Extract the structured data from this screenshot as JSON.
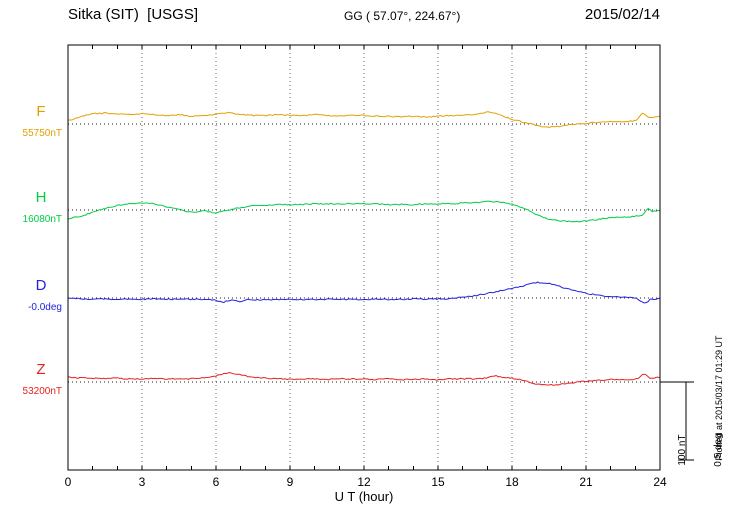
{
  "header": {
    "station": "Sitka (SIT)  [USGS]",
    "coords": "GG ( 57.07°, 224.67°)",
    "date": "2015/02/14"
  },
  "footer_note": "Plotted at 2015/03/17 01:29 UT",
  "chart_data": {
    "type": "line",
    "xlabel": "U T (hour)",
    "x_range": [
      0,
      24
    ],
    "x_ticks": [
      "0",
      "3",
      "6",
      "9",
      "12",
      "15",
      "18",
      "21",
      "24"
    ],
    "grid": "dotted vertical lines every 3 hours; dotted horizontal baseline per trace",
    "scale_bar": {
      "labels": [
        "100 nT",
        "0.5 deg"
      ],
      "nT": 100,
      "deg": 0.5
    },
    "series": [
      {
        "name": "F",
        "baseline_label": "55750nT",
        "unit": "nT",
        "color": "#e2a000",
        "points": [
          [
            0,
            4
          ],
          [
            0.5,
            9
          ],
          [
            1,
            13
          ],
          [
            1.5,
            14
          ],
          [
            2,
            13
          ],
          [
            2.5,
            12
          ],
          [
            3,
            13
          ],
          [
            3.5,
            12
          ],
          [
            4,
            11
          ],
          [
            4.5,
            12
          ],
          [
            5,
            10
          ],
          [
            5.5,
            11
          ],
          [
            6,
            12
          ],
          [
            6.5,
            15
          ],
          [
            7,
            12
          ],
          [
            7.5,
            11
          ],
          [
            8,
            11
          ],
          [
            8.5,
            12
          ],
          [
            9,
            11
          ],
          [
            9.5,
            11
          ],
          [
            10,
            12
          ],
          [
            10.5,
            11
          ],
          [
            11,
            10
          ],
          [
            11.5,
            11
          ],
          [
            12,
            11
          ],
          [
            12.5,
            10
          ],
          [
            13,
            10
          ],
          [
            13.5,
            9
          ],
          [
            14,
            10
          ],
          [
            14.5,
            9
          ],
          [
            15,
            10
          ],
          [
            15.5,
            11
          ],
          [
            16,
            11
          ],
          [
            16.5,
            12
          ],
          [
            17,
            16
          ],
          [
            17.5,
            12
          ],
          [
            18,
            6
          ],
          [
            18.5,
            2
          ],
          [
            19,
            -2
          ],
          [
            19.5,
            -4
          ],
          [
            20,
            -3
          ],
          [
            20.5,
            0
          ],
          [
            21,
            1
          ],
          [
            21.5,
            2
          ],
          [
            22,
            3
          ],
          [
            22.5,
            3
          ],
          [
            23,
            4
          ],
          [
            23.3,
            14
          ],
          [
            23.6,
            8
          ],
          [
            24,
            10
          ]
        ]
      },
      {
        "name": "H",
        "baseline_label": "16080nT",
        "unit": "nT",
        "color": "#00cc44",
        "points": [
          [
            0,
            -11
          ],
          [
            0.5,
            -8
          ],
          [
            1,
            -3
          ],
          [
            1.5,
            2
          ],
          [
            2,
            6
          ],
          [
            2.5,
            8
          ],
          [
            3,
            9
          ],
          [
            3.5,
            8
          ],
          [
            4,
            4
          ],
          [
            4.5,
            1
          ],
          [
            5,
            -3
          ],
          [
            5.5,
            -1
          ],
          [
            6,
            -4
          ],
          [
            6.5,
            0
          ],
          [
            7,
            3
          ],
          [
            7.5,
            6
          ],
          [
            8,
            6
          ],
          [
            8.5,
            7
          ],
          [
            9,
            7
          ],
          [
            9.5,
            7
          ],
          [
            10,
            8
          ],
          [
            10.5,
            8
          ],
          [
            11,
            8
          ],
          [
            11.5,
            8
          ],
          [
            12,
            8
          ],
          [
            12.5,
            8
          ],
          [
            13,
            7
          ],
          [
            13.5,
            7
          ],
          [
            14,
            7
          ],
          [
            14.5,
            8
          ],
          [
            15,
            8
          ],
          [
            15.5,
            8
          ],
          [
            16,
            9
          ],
          [
            16.5,
            9
          ],
          [
            17,
            11
          ],
          [
            17.5,
            10
          ],
          [
            18,
            8
          ],
          [
            18.5,
            2
          ],
          [
            19,
            -6
          ],
          [
            19.5,
            -12
          ],
          [
            20,
            -14
          ],
          [
            20.5,
            -15
          ],
          [
            21,
            -14
          ],
          [
            21.5,
            -12
          ],
          [
            22,
            -10
          ],
          [
            22.5,
            -9
          ],
          [
            23,
            -8
          ],
          [
            23.3,
            -6
          ],
          [
            23.5,
            3
          ],
          [
            23.7,
            -2
          ],
          [
            24,
            0
          ]
        ]
      },
      {
        "name": "D",
        "baseline_label": "-0.0deg",
        "unit": "deg",
        "color": "#2222dd",
        "points": [
          [
            0,
            0
          ],
          [
            0.5,
            -0.005
          ],
          [
            1,
            -0.008
          ],
          [
            1.5,
            -0.006
          ],
          [
            2,
            -0.008
          ],
          [
            2.5,
            -0.006
          ],
          [
            3,
            -0.008
          ],
          [
            3.5,
            -0.006
          ],
          [
            4,
            -0.008
          ],
          [
            4.5,
            -0.005
          ],
          [
            5,
            -0.008
          ],
          [
            5.5,
            -0.01
          ],
          [
            6,
            -0.015
          ],
          [
            6.3,
            -0.028
          ],
          [
            6.6,
            -0.012
          ],
          [
            7,
            -0.025
          ],
          [
            7.3,
            -0.01
          ],
          [
            7.5,
            -0.012
          ],
          [
            8,
            -0.01
          ],
          [
            8.5,
            -0.01
          ],
          [
            9,
            -0.008
          ],
          [
            9.5,
            -0.01
          ],
          [
            10,
            -0.01
          ],
          [
            10.5,
            -0.008
          ],
          [
            11,
            -0.01
          ],
          [
            11.5,
            -0.008
          ],
          [
            12,
            -0.01
          ],
          [
            12.5,
            -0.008
          ],
          [
            13,
            -0.01
          ],
          [
            13.5,
            -0.008
          ],
          [
            14,
            -0.006
          ],
          [
            14.5,
            -0.008
          ],
          [
            15,
            -0.006
          ],
          [
            15.5,
            -0.004
          ],
          [
            16,
            0.005
          ],
          [
            16.5,
            0.015
          ],
          [
            17,
            0.03
          ],
          [
            17.5,
            0.045
          ],
          [
            18,
            0.06
          ],
          [
            18.5,
            0.08
          ],
          [
            19,
            0.1
          ],
          [
            19.5,
            0.095
          ],
          [
            20,
            0.07
          ],
          [
            20.5,
            0.05
          ],
          [
            21,
            0.03
          ],
          [
            21.5,
            0.018
          ],
          [
            22,
            0.01
          ],
          [
            22.5,
            0.005
          ],
          [
            23,
            0.002
          ],
          [
            23.4,
            -0.035
          ],
          [
            23.6,
            -0.01
          ],
          [
            24,
            -0.005
          ]
        ]
      },
      {
        "name": "Z",
        "baseline_label": "53200nT",
        "unit": "nT",
        "color": "#e62020",
        "points": [
          [
            0,
            6
          ],
          [
            0.5,
            5
          ],
          [
            1,
            5
          ],
          [
            1.5,
            4
          ],
          [
            2,
            5
          ],
          [
            2.5,
            4
          ],
          [
            3,
            4
          ],
          [
            3.5,
            5
          ],
          [
            4,
            4
          ],
          [
            4.5,
            4
          ],
          [
            5,
            4
          ],
          [
            5.5,
            5
          ],
          [
            6,
            8
          ],
          [
            6.5,
            12
          ],
          [
            7,
            9
          ],
          [
            7.5,
            6
          ],
          [
            8,
            5
          ],
          [
            8.5,
            4
          ],
          [
            9,
            4
          ],
          [
            9.5,
            4
          ],
          [
            10,
            4
          ],
          [
            10.5,
            3
          ],
          [
            11,
            4
          ],
          [
            11.5,
            4
          ],
          [
            12,
            4
          ],
          [
            12.5,
            3
          ],
          [
            13,
            4
          ],
          [
            13.5,
            3
          ],
          [
            14,
            3
          ],
          [
            14.5,
            4
          ],
          [
            15,
            3
          ],
          [
            15.5,
            4
          ],
          [
            16,
            4
          ],
          [
            16.5,
            4
          ],
          [
            17,
            5
          ],
          [
            17.3,
            8
          ],
          [
            17.6,
            6
          ],
          [
            18,
            5
          ],
          [
            18.5,
            2
          ],
          [
            19,
            -3
          ],
          [
            19.5,
            -4
          ],
          [
            20,
            -3
          ],
          [
            20.5,
            -1
          ],
          [
            21,
            1
          ],
          [
            21.5,
            2
          ],
          [
            22,
            3
          ],
          [
            22.5,
            3
          ],
          [
            23,
            3
          ],
          [
            23.4,
            11
          ],
          [
            23.6,
            5
          ],
          [
            24,
            6
          ]
        ]
      }
    ]
  }
}
